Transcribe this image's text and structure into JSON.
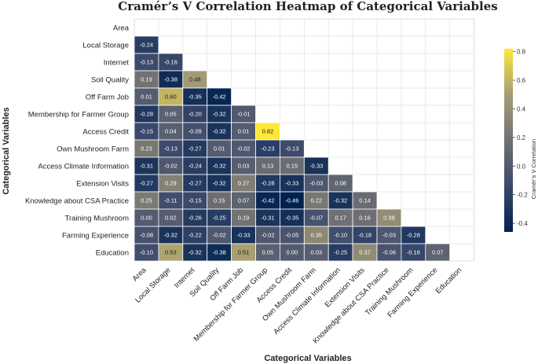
{
  "chart_data": {
    "type": "heatmap",
    "title": "Cramér’s V Correlation Heatmap of Categorical Variables",
    "xlabel": "Categorical Variables",
    "ylabel": "Categorical Variables",
    "variables": [
      "Area",
      "Local Storage",
      "Internet",
      "Soil Quality",
      "Off Farm Job",
      "Membership for Farmer Group",
      "Access Credit",
      "Own Mushroom Farm",
      "Access Climate Information",
      "Extension Visits",
      "Knowledge about CSA Practice",
      "Training Mushroom",
      "Farming Experience",
      "Education"
    ],
    "cells": [
      [],
      [
        "-0.24"
      ],
      [
        "-0.13",
        "-0.16"
      ],
      [
        "0.19",
        "-0.38",
        "0.48"
      ],
      [
        "0.01",
        "0.60",
        "-0.35",
        "-0.42"
      ],
      [
        "-0.28",
        "0.05",
        "-0.20",
        "-0.32",
        "-0.01"
      ],
      [
        "-0.15",
        "0.04",
        "-0.09",
        "-0.32",
        "0.01",
        "0.82"
      ],
      [
        "0.23",
        "-0.13",
        "-0.27",
        "0.01",
        "-0.02",
        "-0.23",
        "-0.13"
      ],
      [
        "-0.31",
        "-0.02",
        "-0.24",
        "-0.32",
        "0.03",
        "0.13",
        "0.15",
        "-0.33"
      ],
      [
        "-0.27",
        "0.29",
        "-0.27",
        "-0.32",
        "0.27",
        "-0.28",
        "-0.33",
        "-0.03",
        "0.08"
      ],
      [
        "0.25",
        "-0.11",
        "-0.15",
        "0.15",
        "0.07",
        "-0.42",
        "-0.46",
        "0.22",
        "-0.32",
        "0.14"
      ],
      [
        "0.00",
        "0.02",
        "-0.26",
        "-0.25",
        "0.19",
        "-0.31",
        "-0.35",
        "-0.07",
        "0.17",
        "0.16",
        "0.38"
      ],
      [
        "-0.08",
        "-0.32",
        "-0.22",
        "-0.02",
        "-0.33",
        "-0.02",
        "-0.05",
        "0.35",
        "-0.10",
        "-0.18",
        "-0.03",
        "-0.28"
      ],
      [
        "-0.10",
        "0.53",
        "-0.32",
        "-0.38",
        "0.51",
        "0.05",
        "0.00",
        "0.03",
        "-0.25",
        "0.37",
        "-0.06",
        "-0.16",
        "0.07"
      ]
    ],
    "colorbar": {
      "label": "Cramér’s V Correlation",
      "range": [
        -0.46,
        0.82
      ],
      "ticks": [
        "0.8",
        "0.6",
        "0.4",
        "0.2",
        "0.0",
        "-0.2",
        "-0.4"
      ],
      "colormap": "cividis"
    }
  }
}
